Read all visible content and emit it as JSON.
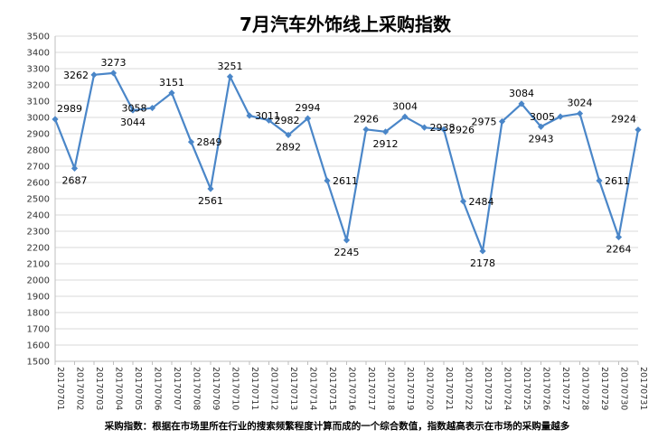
{
  "chart_data": {
    "type": "line",
    "title": "7月汽车外饰线上采购指数",
    "xlabel": "",
    "ylabel": "",
    "ylim": [
      1500,
      3500
    ],
    "ystep": 100,
    "grid": true,
    "legend": "none",
    "line_color": "#4a86c8",
    "categories": [
      "20170701",
      "20170702",
      "20170703",
      "20170704",
      "20170705",
      "20170706",
      "20170707",
      "20170708",
      "20170709",
      "20170710",
      "20170711",
      "20170712",
      "20170713",
      "20170714",
      "20170715",
      "20170716",
      "20170717",
      "20170718",
      "20170719",
      "20170720",
      "20170721",
      "20170722",
      "20170723",
      "20170724",
      "20170725",
      "20170726",
      "20170727",
      "20170728",
      "20170729",
      "20170730",
      "20170731"
    ],
    "values": [
      2989,
      2687,
      3262,
      3273,
      3044,
      3058,
      3151,
      2849,
      2561,
      3251,
      3011,
      2982,
      2892,
      2994,
      2611,
      2245,
      2926,
      2912,
      3004,
      2938,
      2926,
      2484,
      2178,
      2975,
      3084,
      2943,
      3005,
      3024,
      2611,
      2264,
      2924
    ],
    "data_labels": [
      "2989",
      "2687",
      "3262",
      "3273",
      "3044",
      "3058",
      "3151",
      "2849",
      "2561",
      "3251",
      "3011",
      "2982",
      "2892",
      "2994",
      "2611",
      "2245",
      "2926",
      "2912",
      "3004",
      "2938",
      "2926",
      "2484",
      "2178",
      "2975",
      "3084",
      "2943",
      "3005",
      "3024",
      "2611",
      "2264",
      "2924"
    ],
    "footnote": "采购指数：根据在市场里所在行业的搜索频繁程度计算而成的一个综合数值，指数越高表示在市场的采购量越多"
  }
}
